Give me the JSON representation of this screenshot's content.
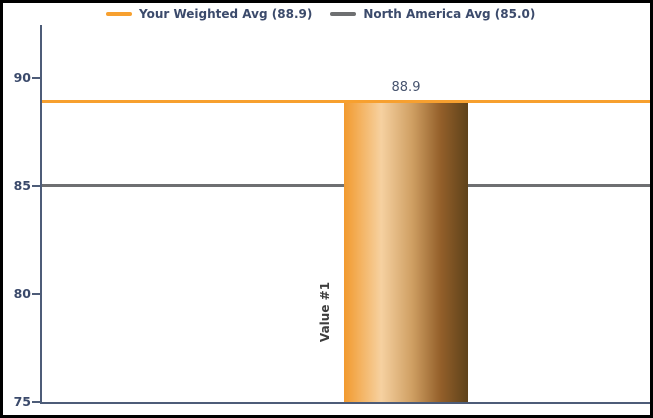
{
  "colors": {
    "accent_orange": "#f7a02f",
    "accent_gray": "#6e6f71",
    "axis": "#4d5c78",
    "tick_label": "#3b4a6b",
    "value_label": "#46536e",
    "category_label": "#3d3d3d",
    "border": "#000000",
    "background": "#ffffff",
    "bar_gradient": [
      "#f29a2e",
      "#f6d1a0",
      "#cf9f63",
      "#935f2a",
      "#5e421a"
    ]
  },
  "chart_data": {
    "type": "bar",
    "title": "",
    "categories": [
      "Value #1"
    ],
    "values": [
      88.9
    ],
    "bar_labels": [
      "88.9"
    ],
    "yticks": [
      90,
      85,
      80,
      75
    ],
    "ylim": [
      75,
      92.5
    ],
    "grid": false,
    "legend_position": "top",
    "legend": [
      {
        "name": "your-weighted-avg",
        "label": "Your Weighted Avg (88.9)",
        "color": "#f7a02f"
      },
      {
        "name": "north-america-avg",
        "label": "North America Avg (85.0)",
        "color": "#6e6f71"
      }
    ],
    "reference_lines": [
      {
        "name": "your-weighted-avg-line",
        "label": "Your Weighted Avg (88.9)",
        "value": 88.9,
        "color": "#f7a02f",
        "above_bar": true
      },
      {
        "name": "north-america-avg-line",
        "label": "North America Avg (85.0)",
        "value": 85.0,
        "color": "#6e6f71",
        "above_bar": false
      }
    ]
  }
}
